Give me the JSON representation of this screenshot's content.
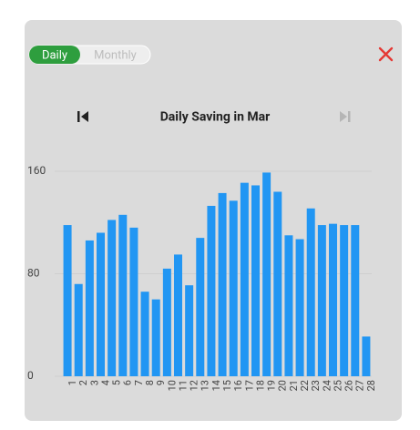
{
  "toggle": {
    "options": [
      "Daily",
      "Monthly"
    ],
    "selected": 0
  },
  "chart_data": {
    "type": "bar",
    "title": "Daily Saving in Mar",
    "categories": [
      "1",
      "2",
      "3",
      "4",
      "5",
      "6",
      "7",
      "8",
      "9",
      "10",
      "11",
      "12",
      "13",
      "14",
      "15",
      "16",
      "17",
      "18",
      "19",
      "20",
      "21",
      "22",
      "23",
      "24",
      "25",
      "26",
      "27",
      "28"
    ],
    "values": [
      118,
      72,
      106,
      112,
      122,
      126,
      116,
      66,
      60,
      84,
      95,
      71,
      108,
      133,
      143,
      137,
      151,
      149,
      159,
      144,
      110,
      107,
      131,
      118,
      119,
      118,
      118,
      31
    ],
    "color": "#2196f3",
    "ylim": [
      0,
      160
    ],
    "yticks": [
      0,
      80,
      160
    ],
    "grid": true
  }
}
